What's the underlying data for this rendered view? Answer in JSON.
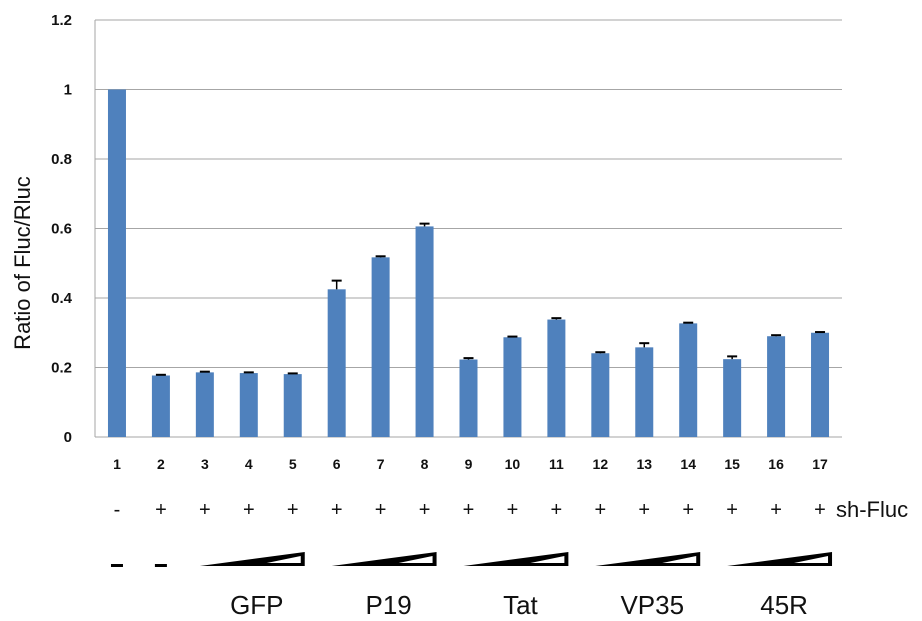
{
  "chart_data": {
    "type": "bar",
    "title": "",
    "xlabel": "",
    "ylabel": "Ratio of Fluc/Rluc",
    "ylim": [
      0,
      1.2
    ],
    "yticks": [
      "0",
      "0.2",
      "0.4",
      "0.6",
      "0.8",
      "1",
      "1.2"
    ],
    "grid": true,
    "bar_color": "#4f81bd",
    "categories": [
      "1",
      "2",
      "3",
      "4",
      "5",
      "6",
      "7",
      "8",
      "9",
      "10",
      "11",
      "12",
      "13",
      "14",
      "15",
      "16",
      "17"
    ],
    "values": [
      1.0,
      0.177,
      0.186,
      0.184,
      0.181,
      0.425,
      0.517,
      0.606,
      0.223,
      0.287,
      0.338,
      0.241,
      0.258,
      0.327,
      0.224,
      0.29,
      0.3
    ],
    "errors": [
      0,
      0.002,
      0.002,
      0.002,
      0.002,
      0.025,
      0.003,
      0.008,
      0.004,
      0.002,
      0.004,
      0.003,
      0.012,
      0.002,
      0.008,
      0.003,
      0.002
    ],
    "sh_fluc_row": {
      "label": "sh-Fluc",
      "signs": [
        "-",
        "+",
        "+",
        "+",
        "+",
        "+",
        "+",
        "+",
        "+",
        "+",
        "+",
        "+",
        "+",
        "+",
        "+",
        "+",
        "+"
      ]
    },
    "treatment_row": {
      "dashes": [
        "-",
        "-"
      ],
      "groups": [
        {
          "label": "GFP",
          "lanes": [
            3,
            5
          ]
        },
        {
          "label": "P19",
          "lanes": [
            6,
            8
          ]
        },
        {
          "label": "Tat",
          "lanes": [
            9,
            11
          ]
        },
        {
          "label": "VP35",
          "lanes": [
            12,
            14
          ]
        },
        {
          "label": "45R",
          "lanes": [
            15,
            17
          ]
        }
      ]
    }
  }
}
